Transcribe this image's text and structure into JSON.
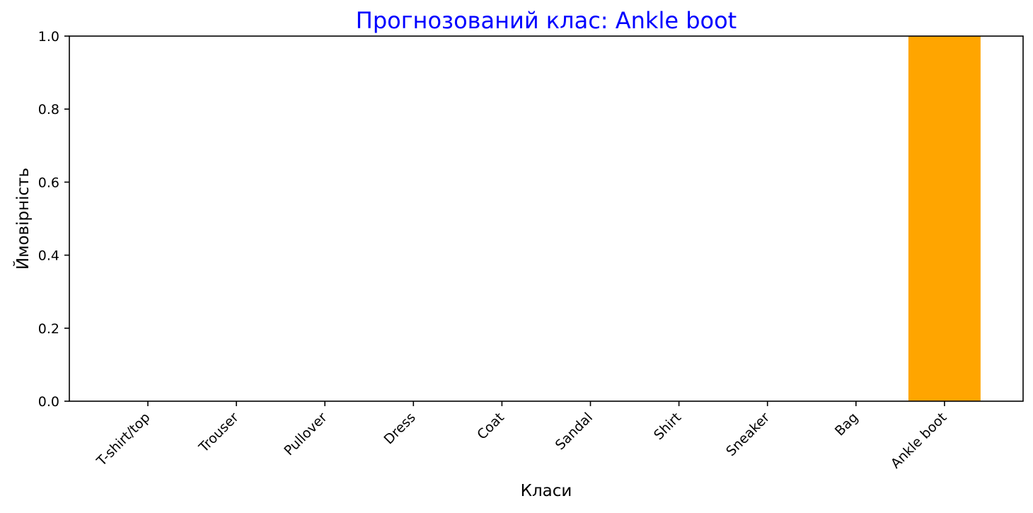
{
  "chart_data": {
    "type": "bar",
    "title": "Прогнозований клас: Ankle boot",
    "xlabel": "Класи",
    "ylabel": "Ймовірність",
    "categories": [
      "T-shirt/top",
      "Trouser",
      "Pullover",
      "Dress",
      "Coat",
      "Sandal",
      "Shirt",
      "Sneaker",
      "Bag",
      "Ankle boot"
    ],
    "values": [
      0,
      0,
      0,
      0,
      0,
      0,
      0,
      0,
      0,
      1.0
    ],
    "ylim": [
      0,
      1.0
    ],
    "yticks": [
      "0.0",
      "0.2",
      "0.4",
      "0.6",
      "0.8",
      "1.0"
    ],
    "grid": false,
    "legend": "none",
    "colors": {
      "title": "#0000ff",
      "bar": "#ffa500",
      "axis": "#000000"
    }
  }
}
